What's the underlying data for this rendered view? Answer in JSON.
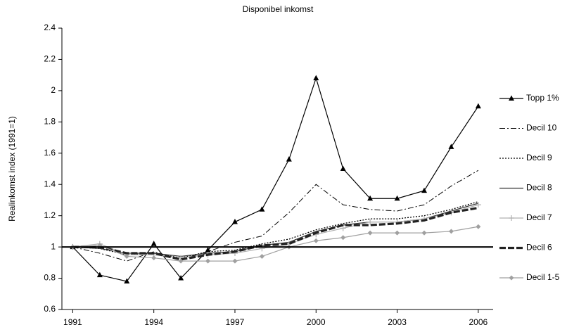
{
  "chart_data": {
    "type": "line",
    "title": "Disponibel inkomst",
    "ylabel": "Realinkomst index (1991=1)",
    "x": [
      1991,
      1992,
      1993,
      1994,
      1995,
      1996,
      1997,
      1998,
      1999,
      2000,
      2001,
      2002,
      2003,
      2004,
      2005,
      2006
    ],
    "xlim": [
      1990.6,
      2006.55
    ],
    "xticks": [
      1991,
      1994,
      1997,
      2000,
      2003,
      2006
    ],
    "ylim": [
      0.6,
      2.4
    ],
    "yticks": [
      0.6,
      0.8,
      1,
      1.2,
      1.4,
      1.6,
      1.8,
      2,
      2.2,
      2.4
    ],
    "reference_line": 1,
    "legend": "right",
    "series": [
      {
        "name": "Topp 1%",
        "color": "#000000",
        "width": 1.2,
        "dash": "none",
        "marker": "triangle",
        "values": [
          1,
          0.82,
          0.78,
          1.02,
          0.8,
          0.98,
          1.16,
          1.24,
          1.56,
          2.08,
          1.5,
          1.31,
          1.31,
          1.36,
          1.64,
          1.9
        ]
      },
      {
        "name": "Decil 10",
        "color": "#000000",
        "width": 1,
        "dash": "8 3 2 3",
        "marker": "none",
        "values": [
          1,
          0.96,
          0.91,
          0.97,
          0.92,
          0.97,
          1.03,
          1.07,
          1.22,
          1.4,
          1.27,
          1.24,
          1.23,
          1.27,
          1.39,
          1.49
        ]
      },
      {
        "name": "Decil 9",
        "color": "#000000",
        "width": 1.3,
        "dash": "2 2",
        "marker": "none",
        "values": [
          1,
          0.99,
          0.95,
          0.96,
          0.93,
          0.97,
          0.98,
          1.02,
          1.05,
          1.11,
          1.15,
          1.18,
          1.18,
          1.2,
          1.24,
          1.29
        ]
      },
      {
        "name": "Decil 8",
        "color": "#333333",
        "width": 1.2,
        "dash": "none",
        "marker": "none",
        "values": [
          1,
          0.99,
          0.96,
          0.96,
          0.94,
          0.96,
          0.97,
          1.01,
          1.03,
          1.1,
          1.14,
          1.16,
          1.16,
          1.18,
          1.23,
          1.28
        ]
      },
      {
        "name": "Decil 7",
        "color": "#b0b0b0",
        "width": 1.2,
        "dash": "none",
        "marker": "plus",
        "values": [
          1,
          1.02,
          0.95,
          0.95,
          0.93,
          0.95,
          0.96,
          0.99,
          1.02,
          1.08,
          1.12,
          1.16,
          1.16,
          1.18,
          1.22,
          1.27
        ]
      },
      {
        "name": "Decil 6",
        "color": "#222222",
        "width": 3.2,
        "dash": "9 3",
        "marker": "none",
        "values": [
          1,
          1.0,
          0.96,
          0.96,
          0.92,
          0.95,
          0.97,
          1.01,
          1.02,
          1.09,
          1.14,
          1.14,
          1.15,
          1.17,
          1.22,
          1.25
        ]
      },
      {
        "name": "Decil 1-5",
        "color": "#a0a0a0",
        "width": 1.2,
        "dash": "none",
        "marker": "diamond",
        "values": [
          1,
          1.01,
          0.94,
          0.93,
          0.91,
          0.91,
          0.91,
          0.94,
          1.0,
          1.04,
          1.06,
          1.09,
          1.09,
          1.09,
          1.1,
          1.13
        ]
      }
    ]
  }
}
